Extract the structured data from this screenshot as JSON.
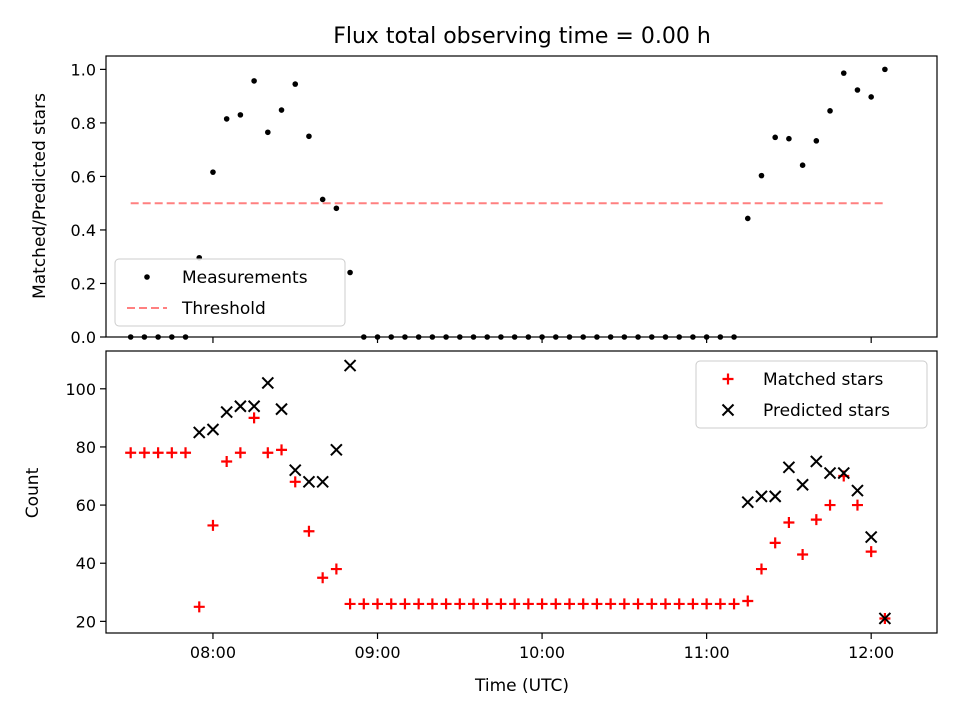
{
  "chart_data": [
    {
      "type": "scatter",
      "title": "Flux total observing time = 0.00 h",
      "ylabel": "Matched/Predicted stars",
      "xlabel": "",
      "ylim": [
        0,
        1.05
      ],
      "yticks": [
        0.0,
        0.2,
        0.4,
        0.6,
        0.8,
        1.0
      ],
      "ytick_labels": [
        "0.0",
        "0.2",
        "0.4",
        "0.6",
        "0.8",
        "1.0"
      ],
      "legend_position": "lower-left",
      "series": [
        {
          "name": "Measurements",
          "marker": "dot",
          "color": "#000000",
          "points": [
            [
              "07:30",
              0.0
            ],
            [
              "07:35",
              0.0
            ],
            [
              "07:40",
              0.0
            ],
            [
              "07:45",
              0.0
            ],
            [
              "07:50",
              0.0
            ],
            [
              "07:55",
              0.296
            ],
            [
              "08:00",
              0.616
            ],
            [
              "08:05",
              0.815
            ],
            [
              "08:10",
              0.83
            ],
            [
              "08:15",
              0.957
            ],
            [
              "08:20",
              0.765
            ],
            [
              "08:25",
              0.848
            ],
            [
              "08:30",
              0.945
            ],
            [
              "08:35",
              0.75
            ],
            [
              "08:40",
              0.514
            ],
            [
              "08:45",
              0.481
            ],
            [
              "08:50",
              0.241
            ],
            [
              "08:55",
              0.0
            ],
            [
              "09:00",
              0.0
            ],
            [
              "09:05",
              0.0
            ],
            [
              "09:10",
              0.0
            ],
            [
              "09:15",
              0.0
            ],
            [
              "09:20",
              0.0
            ],
            [
              "09:25",
              0.0
            ],
            [
              "09:30",
              0.0
            ],
            [
              "09:35",
              0.0
            ],
            [
              "09:40",
              0.0
            ],
            [
              "09:45",
              0.0
            ],
            [
              "09:50",
              0.0
            ],
            [
              "09:55",
              0.0
            ],
            [
              "10:00",
              0.0
            ],
            [
              "10:05",
              0.0
            ],
            [
              "10:10",
              0.0
            ],
            [
              "10:15",
              0.0
            ],
            [
              "10:20",
              0.0
            ],
            [
              "10:25",
              0.0
            ],
            [
              "10:30",
              0.0
            ],
            [
              "10:35",
              0.0
            ],
            [
              "10:40",
              0.0
            ],
            [
              "10:45",
              0.0
            ],
            [
              "10:50",
              0.0
            ],
            [
              "10:55",
              0.0
            ],
            [
              "11:00",
              0.0
            ],
            [
              "11:05",
              0.0
            ],
            [
              "11:10",
              0.0
            ],
            [
              "11:15",
              0.443
            ],
            [
              "11:20",
              0.603
            ],
            [
              "11:25",
              0.746
            ],
            [
              "11:30",
              0.741
            ],
            [
              "11:35",
              0.642
            ],
            [
              "11:40",
              0.733
            ],
            [
              "11:45",
              0.845
            ],
            [
              "11:50",
              0.986
            ],
            [
              "11:55",
              0.923
            ],
            [
              "12:00",
              0.897
            ],
            [
              "12:05",
              1.0
            ]
          ]
        },
        {
          "name": "Threshold",
          "marker": "dashed-line",
          "color": "#ff8080",
          "points": [
            [
              "07:30",
              0.5
            ],
            [
              "12:05",
              0.5
            ]
          ]
        }
      ]
    },
    {
      "type": "scatter",
      "title": "",
      "ylabel": "Count",
      "xlabel": "Time (UTC)",
      "ylim": [
        16,
        113
      ],
      "yticks": [
        20,
        40,
        60,
        80,
        100
      ],
      "ytick_labels": [
        "20",
        "40",
        "60",
        "80",
        "100"
      ],
      "xlim": [
        "07:21",
        "12:24"
      ],
      "xticks": [
        "08:00",
        "09:00",
        "10:00",
        "11:00",
        "12:00"
      ],
      "xtick_labels": [
        "08:00",
        "09:00",
        "10:00",
        "11:00",
        "12:00"
      ],
      "legend_position": "upper-right",
      "series": [
        {
          "name": "Matched stars",
          "marker": "plus",
          "color": "#ff0000",
          "points": [
            [
              "07:30",
              78
            ],
            [
              "07:35",
              78
            ],
            [
              "07:40",
              78
            ],
            [
              "07:45",
              78
            ],
            [
              "07:50",
              78
            ],
            [
              "07:55",
              25
            ],
            [
              "08:00",
              53
            ],
            [
              "08:05",
              75
            ],
            [
              "08:10",
              78
            ],
            [
              "08:15",
              90
            ],
            [
              "08:20",
              78
            ],
            [
              "08:25",
              79
            ],
            [
              "08:30",
              68
            ],
            [
              "08:35",
              51
            ],
            [
              "08:40",
              35
            ],
            [
              "08:45",
              38
            ],
            [
              "08:50",
              26
            ],
            [
              "08:55",
              26
            ],
            [
              "09:00",
              26
            ],
            [
              "09:05",
              26
            ],
            [
              "09:10",
              26
            ],
            [
              "09:15",
              26
            ],
            [
              "09:20",
              26
            ],
            [
              "09:25",
              26
            ],
            [
              "09:30",
              26
            ],
            [
              "09:35",
              26
            ],
            [
              "09:40",
              26
            ],
            [
              "09:45",
              26
            ],
            [
              "09:50",
              26
            ],
            [
              "09:55",
              26
            ],
            [
              "10:00",
              26
            ],
            [
              "10:05",
              26
            ],
            [
              "10:10",
              26
            ],
            [
              "10:15",
              26
            ],
            [
              "10:20",
              26
            ],
            [
              "10:25",
              26
            ],
            [
              "10:30",
              26
            ],
            [
              "10:35",
              26
            ],
            [
              "10:40",
              26
            ],
            [
              "10:45",
              26
            ],
            [
              "10:50",
              26
            ],
            [
              "10:55",
              26
            ],
            [
              "11:00",
              26
            ],
            [
              "11:05",
              26
            ],
            [
              "11:10",
              26
            ],
            [
              "11:15",
              27
            ],
            [
              "11:20",
              38
            ],
            [
              "11:25",
              47
            ],
            [
              "11:30",
              54
            ],
            [
              "11:35",
              43
            ],
            [
              "11:40",
              55
            ],
            [
              "11:45",
              60
            ],
            [
              "11:50",
              70
            ],
            [
              "11:55",
              60
            ],
            [
              "12:00",
              44
            ],
            [
              "12:05",
              21
            ]
          ]
        },
        {
          "name": "Predicted stars",
          "marker": "x",
          "color": "#000000",
          "points": [
            [
              "07:55",
              85
            ],
            [
              "08:00",
              86
            ],
            [
              "08:05",
              92
            ],
            [
              "08:10",
              94
            ],
            [
              "08:15",
              94
            ],
            [
              "08:20",
              102
            ],
            [
              "08:25",
              93
            ],
            [
              "08:30",
              72
            ],
            [
              "08:35",
              68
            ],
            [
              "08:40",
              68
            ],
            [
              "08:45",
              79
            ],
            [
              "08:50",
              108
            ],
            [
              "11:15",
              61
            ],
            [
              "11:20",
              63
            ],
            [
              "11:25",
              63
            ],
            [
              "11:30",
              73
            ],
            [
              "11:35",
              67
            ],
            [
              "11:40",
              75
            ],
            [
              "11:45",
              71
            ],
            [
              "11:50",
              71
            ],
            [
              "11:55",
              65
            ],
            [
              "12:00",
              49
            ],
            [
              "12:05",
              21
            ]
          ]
        }
      ]
    }
  ]
}
